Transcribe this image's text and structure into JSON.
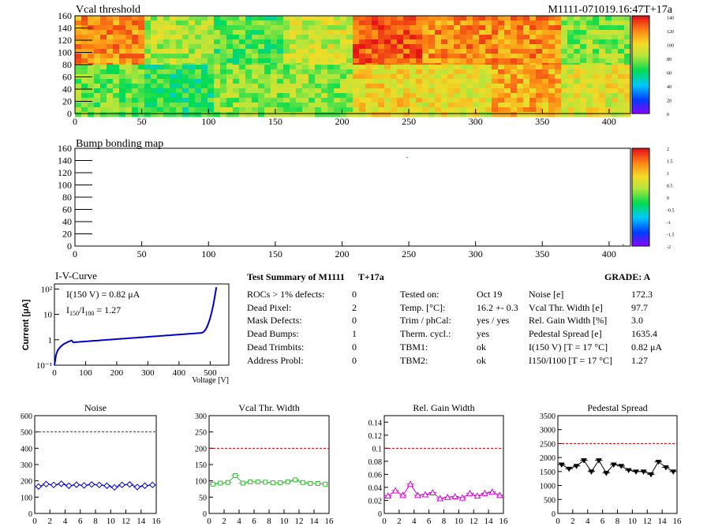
{
  "header": {
    "vcal_title": "Vcal threshold",
    "module_id": "M1111-071019.16:47T+17a",
    "bump_title": "Bump bonding map"
  },
  "vcal_map": {
    "xticks": [
      "0",
      "50",
      "100",
      "150",
      "200",
      "250",
      "300",
      "350",
      "400"
    ],
    "yticks": [
      "0",
      "20",
      "40",
      "60",
      "80",
      "100",
      "120",
      "140",
      "160"
    ],
    "xlim": [
      0,
      416
    ],
    "ylim": [
      0,
      160
    ],
    "colorbar_ticks": [
      "0",
      "20",
      "40",
      "60",
      "80",
      "100",
      "120",
      "140"
    ],
    "roc_mean_levels": {
      "top": [
        118,
        85,
        70,
        90,
        128,
        118,
        118,
        80
      ],
      "bottom": [
        75,
        65,
        80,
        80,
        100,
        95,
        112,
        95
      ]
    },
    "colors": {
      "low": "#b0e070",
      "mid": "#e8e060",
      "high": "#ff7020"
    }
  },
  "bump_map": {
    "xticks": [
      "0",
      "50",
      "100",
      "150",
      "200",
      "250",
      "300",
      "350",
      "400"
    ],
    "yticks": [
      "0",
      "20",
      "40",
      "60",
      "80",
      "100",
      "120",
      "140",
      "160"
    ],
    "colorbar_ticks": [
      "2",
      "1.5",
      "1",
      "0.5",
      "0",
      "-0.5",
      "-1",
      "-1.5",
      "-2"
    ],
    "marks": [
      [
        248,
        146
      ],
      [
        410,
        3
      ]
    ]
  },
  "iv": {
    "title": "I-V-Curve",
    "ylabel": "Current [μA]",
    "xlabel": "Voltage [V]",
    "ann1": "I(150 V) = 0.82 μA",
    "ann2_pre": "I",
    "ann2_sub1": "150",
    "ann2_mid": "/I",
    "ann2_sub2": "100",
    "ann2_post": " = 1.27",
    "xticks": [
      "0",
      "100",
      "200",
      "300",
      "400",
      "500"
    ],
    "yticks": [
      "10⁻¹",
      "1",
      "10",
      "10²"
    ],
    "color": "#0000cc"
  },
  "summary": {
    "title": "Test Summary of M1111",
    "temp": "T+17a",
    "grade": "GRADE:  A",
    "col1": [
      {
        "label": "ROCs > 1% defects:",
        "value": "0"
      },
      {
        "label": "Dead Pixel:",
        "value": "2"
      },
      {
        "label": "Mask Defects:",
        "value": "0"
      },
      {
        "label": "Dead Bumps:",
        "value": "1"
      },
      {
        "label": "Dead Trimbits:",
        "value": "0"
      },
      {
        "label": "Address Probl:",
        "value": "0"
      }
    ],
    "col2": [
      {
        "label": "Tested on:",
        "value": "Oct 19"
      },
      {
        "label": "Temp. [°C]:",
        "value": "16.2 +- 0.3"
      },
      {
        "label": "Trim / phCal:",
        "value": "yes / yes"
      },
      {
        "label": "Therm. cycl.:",
        "value": "yes"
      },
      {
        "label": "TBM1:",
        "value": "ok"
      },
      {
        "label": "TBM2:",
        "value": "ok"
      }
    ],
    "col3": [
      {
        "label": "Noise [e]",
        "value": "172.3"
      },
      {
        "label": "Vcal Thr. Width [e]",
        "value": "97.7"
      },
      {
        "label": "Rel. Gain Width [%]",
        "value": "3.0"
      },
      {
        "label": "Pedestal Spread [e]",
        "value": "1635.4"
      },
      {
        "label": "I(150 V) [T = 17 °C]",
        "value": "0.82 μA"
      },
      {
        "label": "I150/I100  [T = 17 °C]",
        "value": "1.27"
      }
    ]
  },
  "chart_data": [
    {
      "type": "line",
      "title": "Noise",
      "x": [
        0,
        1,
        2,
        3,
        4,
        5,
        6,
        7,
        8,
        9,
        10,
        11,
        12,
        13,
        14,
        15
      ],
      "values": [
        165,
        180,
        175,
        182,
        170,
        176,
        172,
        178,
        175,
        170,
        160,
        175,
        178,
        162,
        170,
        175
      ],
      "ylim": [
        0,
        600
      ],
      "limit": 500,
      "yticks": [
        "0",
        "100",
        "200",
        "300",
        "400",
        "500",
        "600"
      ],
      "xticks": [
        "0",
        "2",
        "4",
        "6",
        "8",
        "10",
        "12",
        "14",
        "16"
      ],
      "color": "#0000cc",
      "marker": "diamond"
    },
    {
      "type": "line",
      "title": "Vcal Thr. Width",
      "x": [
        0,
        1,
        2,
        3,
        4,
        5,
        6,
        7,
        8,
        9,
        10,
        11,
        12,
        13,
        14,
        15
      ],
      "values": [
        90,
        93,
        95,
        116,
        93,
        97,
        97,
        96,
        94,
        94,
        97,
        103,
        95,
        92,
        92,
        90
      ],
      "ylim": [
        0,
        300
      ],
      "limit": 200,
      "yticks": [
        "0",
        "50",
        "100",
        "150",
        "200",
        "250",
        "300"
      ],
      "xticks": [
        "0",
        "2",
        "4",
        "6",
        "8",
        "10",
        "12",
        "14",
        "16"
      ],
      "color": "#33bb33",
      "marker": "square"
    },
    {
      "type": "line",
      "title": "Rel. Gain Width",
      "x": [
        0,
        1,
        2,
        3,
        4,
        5,
        6,
        7,
        8,
        9,
        10,
        11,
        12,
        13,
        14,
        15
      ],
      "values": [
        0.027,
        0.035,
        0.028,
        0.045,
        0.028,
        0.029,
        0.032,
        0.023,
        0.025,
        0.026,
        0.024,
        0.031,
        0.027,
        0.031,
        0.033,
        0.028
      ],
      "ylim": [
        0,
        0.15
      ],
      "limit": 0.1,
      "yticks": [
        "0",
        "0.02",
        "0.04",
        "0.06",
        "0.08",
        "0.1",
        "0.12",
        "0.14"
      ],
      "xticks": [
        "0",
        "2",
        "4",
        "6",
        "8",
        "10",
        "12",
        "14",
        "16"
      ],
      "color": "#dd00dd",
      "marker": "triangle"
    },
    {
      "type": "line",
      "title": "Pedestal Spread",
      "x": [
        0,
        1,
        2,
        3,
        4,
        5,
        6,
        7,
        8,
        9,
        10,
        11,
        12,
        13,
        14,
        15
      ],
      "values": [
        1750,
        1600,
        1700,
        1900,
        1500,
        1900,
        1450,
        1750,
        1700,
        1550,
        1500,
        1500,
        1400,
        1850,
        1650,
        1500
      ],
      "ylim": [
        0,
        3500
      ],
      "limit": 2500,
      "yticks": [
        "0",
        "500",
        "1000",
        "1500",
        "2000",
        "2500",
        "3000",
        "3500"
      ],
      "xticks": [
        "0",
        "2",
        "4",
        "6",
        "8",
        "10",
        "12",
        "14",
        "16"
      ],
      "color": "#000000",
      "marker": "tridown"
    }
  ]
}
